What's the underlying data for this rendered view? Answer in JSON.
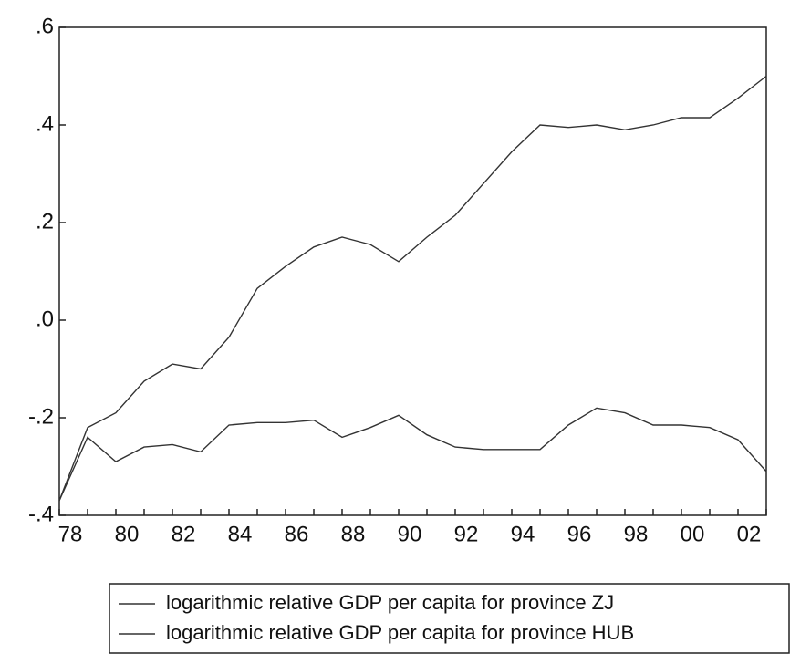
{
  "chart_data": {
    "type": "line",
    "categories": [
      "78",
      null,
      "80",
      null,
      "82",
      null,
      "84",
      null,
      "86",
      null,
      "88",
      null,
      "90",
      null,
      "92",
      null,
      "94",
      null,
      "96",
      null,
      "98",
      null,
      "00",
      null,
      "02",
      null
    ],
    "series": [
      {
        "name": "logarithmic relative GDP per capita for province ZJ",
        "color": "#333333",
        "values": [
          -0.37,
          -0.22,
          -0.19,
          -0.125,
          -0.09,
          -0.1,
          -0.035,
          0.065,
          0.11,
          0.15,
          0.17,
          0.155,
          0.12,
          0.17,
          0.215,
          0.28,
          0.345,
          0.4,
          0.395,
          0.4,
          0.39,
          0.4,
          0.415,
          0.415,
          0.455,
          0.5
        ]
      },
      {
        "name": "logarithmic relative GDP per capita for province HUB",
        "color": "#333333",
        "values": [
          -0.37,
          -0.24,
          -0.29,
          -0.26,
          -0.255,
          -0.27,
          -0.215,
          -0.21,
          -0.21,
          -0.205,
          -0.24,
          -0.22,
          -0.195,
          -0.235,
          -0.26,
          -0.265,
          -0.265,
          -0.265,
          -0.215,
          -0.18,
          -0.19,
          -0.215,
          -0.215,
          -0.22,
          -0.245,
          -0.31
        ]
      }
    ],
    "ylim": [
      -0.4,
      0.6
    ],
    "yticks": [
      {
        "value": -0.4,
        "label": "-.4"
      },
      {
        "value": -0.2,
        "label": "-.2"
      },
      {
        "value": 0,
        "label": ".0"
      },
      {
        "value": 0.2,
        "label": ".2"
      },
      {
        "value": 0.4,
        "label": ".4"
      },
      {
        "value": 0.6,
        "label": ".6"
      }
    ],
    "grid": false
  }
}
